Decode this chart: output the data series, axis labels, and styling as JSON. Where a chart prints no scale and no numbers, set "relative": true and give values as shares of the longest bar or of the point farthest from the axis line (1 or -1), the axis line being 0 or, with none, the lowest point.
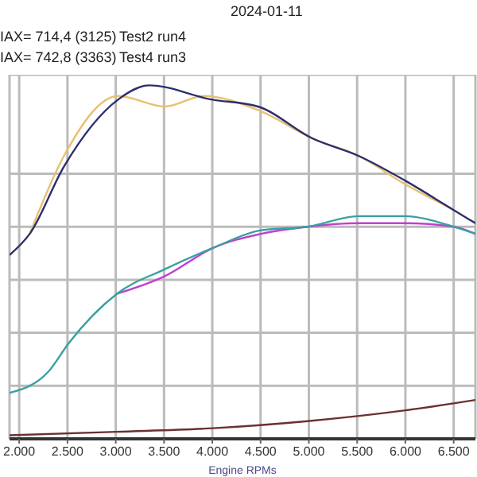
{
  "chart_data": {
    "type": "line",
    "relative": true,
    "xlabel": "Engine RPMs",
    "annotations": [
      "2024-01-11",
      "IAX= 714,4 (3125)",
      "Test2 run4",
      "IAX= 742,8 (3363)",
      "Test4 run3"
    ],
    "xlim": [
      1900,
      6725
    ],
    "xticks": [
      {
        "value": 2000,
        "label": "2.000"
      },
      {
        "value": 2500,
        "label": "2.500"
      },
      {
        "value": 3000,
        "label": "3.000"
      },
      {
        "value": 3500,
        "label": "3.500"
      },
      {
        "value": 4000,
        "label": "4.000"
      },
      {
        "value": 4500,
        "label": "4.500"
      },
      {
        "value": 5000,
        "label": "5.000"
      },
      {
        "value": 5500,
        "label": "5.500"
      },
      {
        "value": 6000,
        "label": "6.000"
      },
      {
        "value": 6500,
        "label": "6.500"
      }
    ],
    "grid": true,
    "legend": false,
    "marker": "none",
    "line_style": "solid",
    "series": [
      {
        "color": "#e8c070",
        "x": [
          2109,
          2463,
          3026,
          3508,
          3910,
          4473,
          5036,
          5518,
          6000,
          6483
        ],
        "values": [
          0.58,
          0.8,
          0.97,
          0.94,
          0.97,
          0.93,
          0.85,
          0.8,
          0.72,
          0.65
        ]
      },
      {
        "color": "#2b2f6e",
        "x": [
          1900,
          2109,
          2463,
          3026,
          3347,
          3990,
          4473,
          5036,
          5518,
          6000,
          6483,
          6725
        ],
        "values": [
          0.52,
          0.58,
          0.77,
          0.96,
          1.0,
          0.96,
          0.94,
          0.85,
          0.8,
          0.73,
          0.65,
          0.61
        ]
      },
      {
        "color": "#c040d0",
        "x": [
          3010,
          3508,
          4007,
          4505,
          4987,
          5518,
          5984,
          6499,
          6725
        ],
        "values": [
          0.41,
          0.46,
          0.54,
          0.58,
          0.6,
          0.61,
          0.61,
          0.6,
          0.58
        ]
      },
      {
        "color": "#3aa0a0",
        "x": [
          1900,
          2302,
          2511,
          3010,
          3508,
          4007,
          4505,
          4987,
          5518,
          5984,
          6499,
          6725
        ],
        "values": [
          0.13,
          0.19,
          0.27,
          0.41,
          0.48,
          0.54,
          0.59,
          0.6,
          0.63,
          0.63,
          0.6,
          0.58
        ]
      },
      {
        "color": "#6b3030",
        "x": [
          1900,
          3010,
          4007,
          4987,
          5984,
          6725
        ],
        "values": [
          0.01,
          0.02,
          0.03,
          0.05,
          0.08,
          0.11
        ]
      }
    ]
  }
}
